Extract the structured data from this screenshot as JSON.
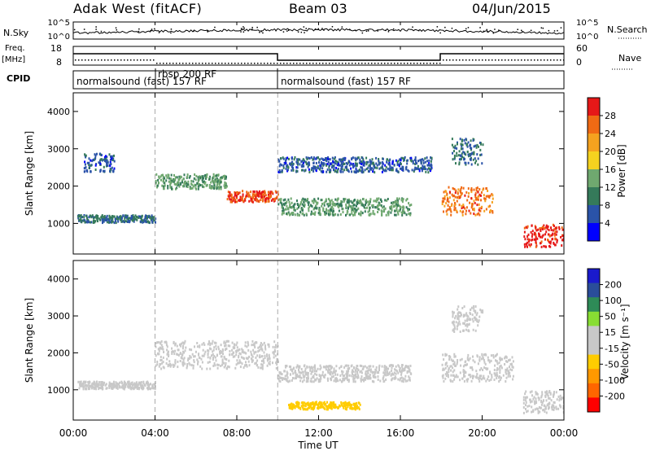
{
  "header": {
    "station": "Adak West (fitACF)",
    "beam": "Beam 03",
    "date": "04/Jun/2015"
  },
  "panels": {
    "nsky_label": "N.Sky",
    "nsky_ticks": [
      "10^5",
      "10^0"
    ],
    "nsearch_label": "N.Search",
    "nsearch_ticks": [
      "10^5",
      "10^0"
    ],
    "freq_label": "Freq.",
    "freq_unit": "[MHz]",
    "freq_ticks": [
      "18",
      "8"
    ],
    "nave_label": "Nave",
    "nave_ticks": [
      "60",
      "0"
    ],
    "cpid_label": "CPID",
    "cpid_segments": [
      {
        "text": "normalsound (fast) 157 RF",
        "start_hour": 0
      },
      {
        "text": "rbsp 200 RF",
        "start_hour": 4
      },
      {
        "text": "normalsound (fast) 157 RF",
        "start_hour": 10
      }
    ]
  },
  "colors": {
    "power_scale": [
      "#0000ff",
      "#2a53a8",
      "#357a5a",
      "#6fa86f",
      "#f5d21f",
      "#f5a21f",
      "#f06a14",
      "#e61818"
    ],
    "velocity_scale": [
      "#ff0000",
      "#ff6600",
      "#ff9900",
      "#ffcc00",
      "#c8c8c8",
      "#c8c8c8",
      "#88dd33",
      "#2e8b57",
      "#2a4d9a",
      "#1a1acc"
    ],
    "ground_scatter": "#c8c8c8"
  },
  "power_colorbar": {
    "label": "Power [dB]",
    "ticks": [
      "28",
      "24",
      "20",
      "16",
      "12",
      "8",
      "4"
    ]
  },
  "velocity_colorbar": {
    "label": "Velocity [m s⁻¹]",
    "ticks": [
      "200",
      "100",
      "50",
      "15",
      "-15",
      "-50",
      "-100",
      "-200"
    ]
  },
  "chart_data": [
    {
      "type": "heatmap",
      "title": "",
      "ylabel": "Slant Range [km]",
      "xlabel": "Time UT",
      "x_unit": "hours UT",
      "xlim": [
        0,
        24
      ],
      "ylim": [
        180,
        4500
      ],
      "x_ticks": [
        "00:00",
        "04:00",
        "08:00",
        "12:00",
        "16:00",
        "20:00",
        "00:00"
      ],
      "y_ticks": [
        "1000",
        "2000",
        "3000",
        "4000"
      ],
      "colorbar": "Power [dB]",
      "colorbar_range": [
        0,
        30
      ],
      "scatter_bands": [
        {
          "t": [
            0.2,
            4.0
          ],
          "range": [
            1050,
            1250
          ],
          "power": 8
        },
        {
          "t": [
            0.5,
            2.0
          ],
          "range": [
            2400,
            2900
          ],
          "power": 6
        },
        {
          "t": [
            4.0,
            7.5
          ],
          "range": [
            1950,
            2350
          ],
          "power": 12
        },
        {
          "t": [
            7.5,
            10.0
          ],
          "range": [
            1600,
            1900
          ],
          "power": 26
        },
        {
          "t": [
            10.0,
            16.5
          ],
          "range": [
            1250,
            1700
          ],
          "power": 12
        },
        {
          "t": [
            10.0,
            17.5
          ],
          "range": [
            2400,
            2800
          ],
          "power": 6
        },
        {
          "t": [
            18.0,
            20.5
          ],
          "range": [
            1250,
            2000
          ],
          "power": 24
        },
        {
          "t": [
            18.5,
            20.0
          ],
          "range": [
            2600,
            3300
          ],
          "power": 8
        },
        {
          "t": [
            22.0,
            24.0
          ],
          "range": [
            400,
            1000
          ],
          "power": 28
        }
      ]
    },
    {
      "type": "heatmap",
      "title": "",
      "ylabel": "Slant Range [km]",
      "xlabel": "Time UT",
      "x_unit": "hours UT",
      "xlim": [
        0,
        24
      ],
      "ylim": [
        180,
        4500
      ],
      "x_ticks": [
        "00:00",
        "04:00",
        "08:00",
        "12:00",
        "16:00",
        "20:00",
        "00:00"
      ],
      "y_ticks": [
        "1000",
        "2000",
        "3000",
        "4000"
      ],
      "colorbar": "Velocity [m s⁻¹]",
      "colorbar_range": [
        -250,
        250
      ],
      "scatter_bands": [
        {
          "t": [
            0.2,
            4.0
          ],
          "range": [
            1050,
            1250
          ],
          "velocity": 0
        },
        {
          "t": [
            4.0,
            10.0
          ],
          "range": [
            1600,
            2350
          ],
          "velocity": 0
        },
        {
          "t": [
            10.0,
            16.5
          ],
          "range": [
            1250,
            1700
          ],
          "velocity": 0
        },
        {
          "t": [
            10.5,
            14.0
          ],
          "range": [
            500,
            700
          ],
          "velocity": -60
        },
        {
          "t": [
            18.5,
            20.0
          ],
          "range": [
            2600,
            3300
          ],
          "velocity": 40
        },
        {
          "t": [
            18.0,
            21.5
          ],
          "range": [
            1250,
            2000
          ],
          "velocity": 0
        },
        {
          "t": [
            22.0,
            24.0
          ],
          "range": [
            400,
            1000
          ],
          "velocity": 0
        }
      ]
    }
  ]
}
